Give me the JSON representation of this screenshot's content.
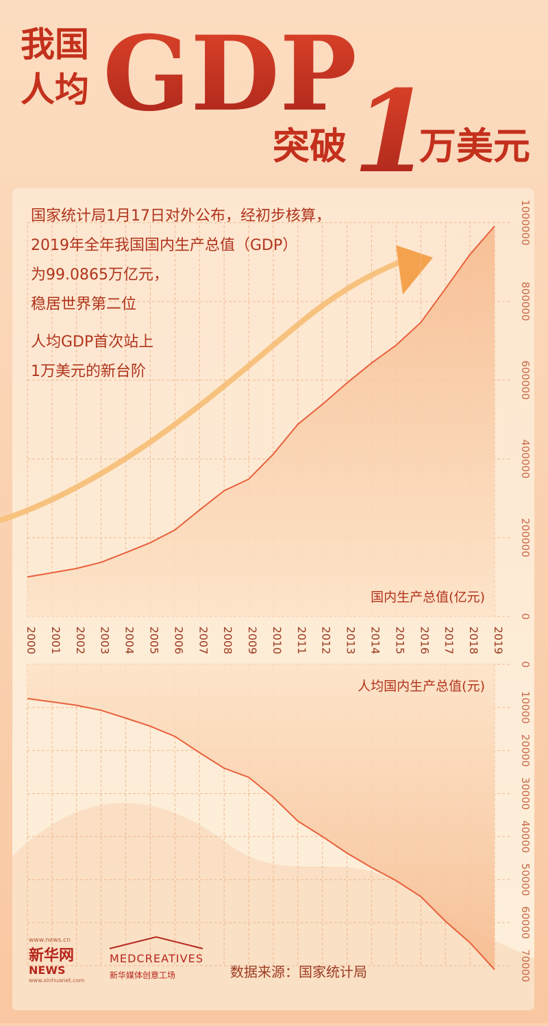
{
  "header": {
    "line1": "我国",
    "line2": "人均",
    "big": "GDP",
    "sub1": "突破",
    "num": "1",
    "sub2": "万美元"
  },
  "intro": [
    "国家统计局1月17日对外公布，经初步核算，",
    "2019年全年我国国内生产总值（GDP）",
    "为99.0865万亿元，",
    "稳居世界第二位",
    "人均GDP首次站上",
    "1万美元的新台阶"
  ],
  "chart_data": [
    {
      "type": "area",
      "categories": [
        "2000",
        "2001",
        "2002",
        "2003",
        "2004",
        "2005",
        "2006",
        "2007",
        "2008",
        "2009",
        "2010",
        "2011",
        "2012",
        "2013",
        "2014",
        "2015",
        "2016",
        "2017",
        "2018",
        "2019"
      ],
      "series": [
        {
          "name": "国内生产总值(亿元)",
          "color": "#e8603c",
          "values": [
            100280,
            110863,
            121717,
            137422,
            161840,
            187319,
            219439,
            270092,
            319245,
            348518,
            412119,
            487940,
            538580,
            592963,
            643563,
            688858,
            746395,
            832036,
            919281,
            990865
          ]
        }
      ],
      "ylim": [
        0,
        1000000
      ],
      "yticks": [
        0,
        200000,
        400000,
        600000,
        800000,
        1000000
      ],
      "grid": true,
      "y_direction": "up"
    },
    {
      "type": "area",
      "series": [
        {
          "name": "人均国内生产总值(元)",
          "color": "#e8603c",
          "values": [
            7942,
            8717,
            9506,
            10666,
            12487,
            14368,
            16738,
            20505,
            24121,
            26222,
            30876,
            36403,
            40007,
            43852,
            47203,
            50251,
            53935,
            59660,
            64644,
            70892
          ]
        }
      ],
      "ylim": [
        0,
        70000
      ],
      "yticks": [
        0,
        10000,
        20000,
        30000,
        40000,
        50000,
        60000,
        70000
      ],
      "grid": true,
      "y_direction": "down"
    }
  ],
  "footer": {
    "site": "www.news.cn",
    "brand": "新华网",
    "news": "NEWS",
    "site2": "www.xinhuanet.com",
    "studio": "MEDCREATIVES",
    "studio_cn": "新华媒体创意工场",
    "source": "数据来源：国家统计局"
  }
}
